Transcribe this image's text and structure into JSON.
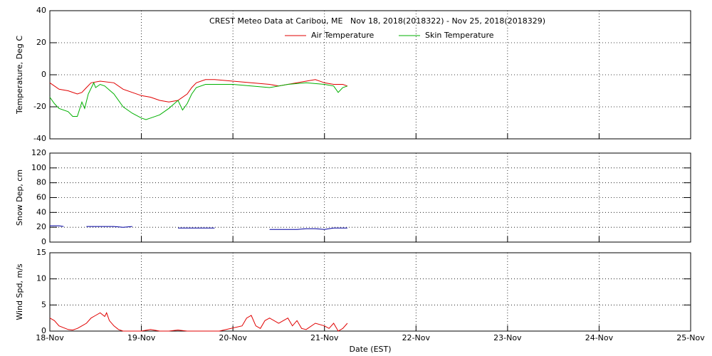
{
  "chart_data": [
    {
      "type": "line",
      "title": "CREST Meteo Data at Caribou, ME   Nov 18, 2018(2018322) - Nov 25, 2018(2018329)",
      "y_label": "Temperature, Deg C",
      "ylim": [
        -40,
        40
      ],
      "yticks": [
        -40,
        -20,
        0,
        20,
        40
      ],
      "grid": true,
      "series": [
        {
          "name": "Air Temperature",
          "color": "#e00000",
          "x": [
            0,
            0.1,
            0.2,
            0.3,
            0.35,
            0.4,
            0.45,
            0.55,
            0.7,
            0.8,
            0.9,
            1.0,
            1.1,
            1.2,
            1.3,
            1.4,
            1.5,
            1.55,
            1.6,
            1.7,
            1.8,
            2.0,
            2.2,
            2.4,
            2.5,
            2.7,
            2.8,
            2.9,
            3.0,
            3.1,
            3.2,
            3.25
          ],
          "values": [
            -5,
            -9,
            -10,
            -12,
            -11,
            -8,
            -5,
            -4,
            -5,
            -9,
            -11,
            -13,
            -14,
            -16,
            -17,
            -16,
            -12,
            -8,
            -5,
            -3,
            -3,
            -4,
            -5,
            -6,
            -7,
            -5,
            -4,
            -3,
            -5,
            -6,
            -6,
            -7
          ]
        },
        {
          "name": "Skin Temperature",
          "color": "#00b000",
          "x": [
            0,
            0.05,
            0.1,
            0.2,
            0.25,
            0.3,
            0.35,
            0.38,
            0.42,
            0.48,
            0.5,
            0.55,
            0.6,
            0.7,
            0.8,
            0.9,
            1.0,
            1.05,
            1.1,
            1.2,
            1.3,
            1.4,
            1.45,
            1.5,
            1.55,
            1.6,
            1.7,
            1.8,
            2.0,
            2.2,
            2.4,
            2.6,
            2.8,
            3.0,
            3.1,
            3.15,
            3.2,
            3.25
          ],
          "values": [
            -14,
            -18,
            -21,
            -23,
            -26,
            -26,
            -17,
            -21,
            -12,
            -5,
            -8,
            -6,
            -7,
            -12,
            -20,
            -24,
            -27,
            -28,
            -27,
            -25,
            -21,
            -16,
            -22,
            -18,
            -12,
            -8,
            -6,
            -6,
            -6,
            -7,
            -8,
            -6,
            -5,
            -6,
            -7,
            -11,
            -8,
            -7
          ]
        }
      ]
    },
    {
      "type": "line",
      "y_label": "Snow Dep, cm",
      "ylim": [
        0,
        120
      ],
      "yticks": [
        0,
        20,
        40,
        60,
        80,
        100,
        120
      ],
      "grid": true,
      "series": [
        {
          "color": "#0000a0",
          "x": [
            0,
            0.05,
            0.1,
            0.15,
            0.25,
            0.4,
            0.5,
            0.6,
            0.7,
            0.8,
            0.9,
            0.95,
            1.4,
            1.5,
            1.6,
            1.7,
            1.8,
            2.0,
            2.4,
            2.5,
            2.6,
            2.7,
            2.8,
            2.9,
            3.0,
            3.1,
            3.2,
            3.25
          ],
          "values": [
            22,
            22,
            22,
            21,
            null,
            21,
            21,
            21,
            21,
            20,
            21,
            null,
            19,
            19,
            19,
            19,
            19,
            null,
            17,
            17,
            17,
            17,
            18,
            18,
            17,
            19,
            19,
            19
          ]
        }
      ]
    },
    {
      "type": "line",
      "y_label": "Wind Spd, m/s",
      "x_label": "Date (EST)",
      "ylim": [
        0,
        15
      ],
      "yticks": [
        0,
        5,
        10,
        15
      ],
      "grid": true,
      "xlim": [
        0,
        7
      ],
      "xticks": [
        {
          "value": 0,
          "label": "18-Nov"
        },
        {
          "value": 1,
          "label": "19-Nov"
        },
        {
          "value": 2,
          "label": "20-Nov"
        },
        {
          "value": 3,
          "label": "21-Nov"
        },
        {
          "value": 4,
          "label": "22-Nov"
        },
        {
          "value": 5,
          "label": "23-Nov"
        },
        {
          "value": 6,
          "label": "24-Nov"
        },
        {
          "value": 7,
          "label": "25-Nov"
        }
      ],
      "series": [
        {
          "color": "#e00000",
          "x": [
            0,
            0.05,
            0.1,
            0.2,
            0.25,
            0.3,
            0.35,
            0.4,
            0.45,
            0.5,
            0.55,
            0.6,
            0.62,
            0.65,
            0.7,
            0.75,
            0.8,
            1.0,
            1.1,
            1.2,
            1.3,
            1.4,
            1.5,
            1.6,
            1.7,
            1.8,
            1.85,
            2.1,
            2.15,
            2.2,
            2.25,
            2.3,
            2.35,
            2.4,
            2.5,
            2.6,
            2.65,
            2.7,
            2.75,
            2.8,
            2.9,
            3.0,
            3.05,
            3.1,
            3.15,
            3.2,
            3.25
          ],
          "values": [
            2.5,
            2,
            1,
            0.3,
            0.2,
            0.5,
            1,
            1.5,
            2.5,
            3,
            3.5,
            2.8,
            3.5,
            2,
            1,
            0.3,
            0,
            0,
            0.3,
            0,
            0,
            0.2,
            0,
            0,
            0,
            0,
            0,
            1,
            2.5,
            3,
            1,
            0.5,
            2,
            2.5,
            1.5,
            2.5,
            1,
            2,
            0.5,
            0.3,
            1.5,
            1,
            0.5,
            1.5,
            0,
            0.5,
            1.5
          ]
        }
      ]
    }
  ]
}
